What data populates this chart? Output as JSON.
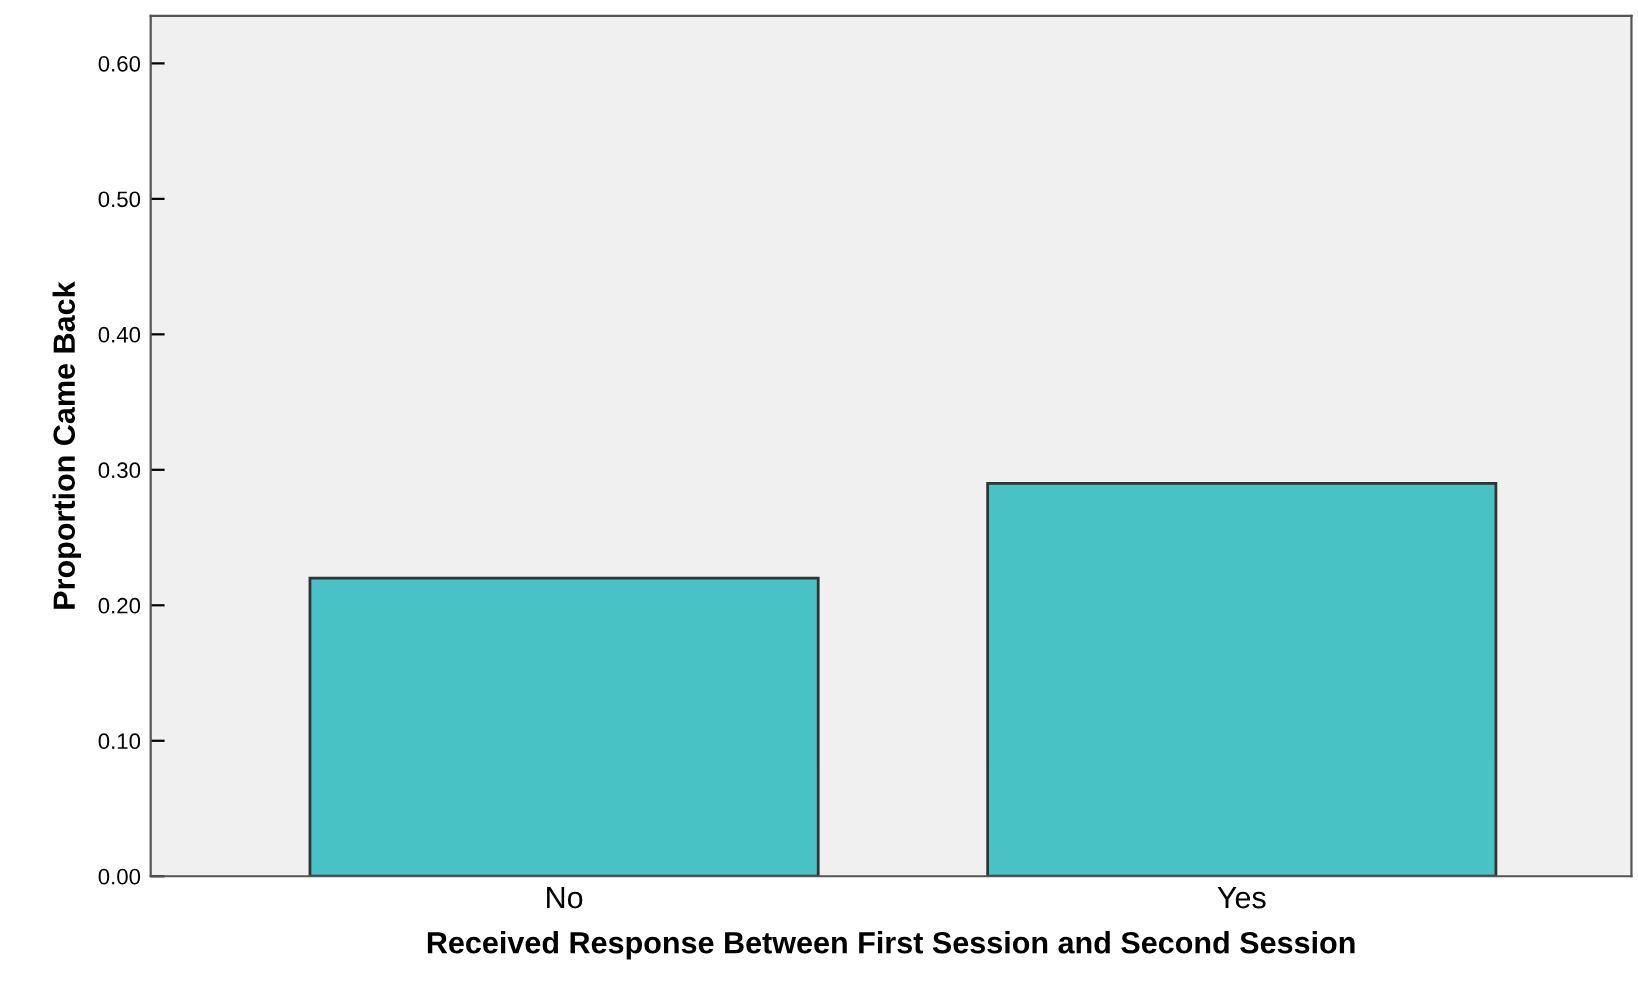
{
  "chart_data": {
    "type": "bar",
    "xlabel": "Received Response Between First Session and Second Session",
    "ylabel": "Proportion Came Back",
    "categories": [
      "No",
      "Yes"
    ],
    "series": [
      {
        "color": "#48c2c5",
        "values": [
          0.22,
          0.29
        ]
      }
    ],
    "ylim": [
      0,
      0.635
    ],
    "yticks": [
      {
        "value": 0,
        "label": "0.00"
      },
      {
        "value": 0.1,
        "label": "0.10"
      },
      {
        "value": 0.2,
        "label": "0.20"
      },
      {
        "value": 0.3,
        "label": "0.30"
      },
      {
        "value": 0.4,
        "label": "0.40"
      },
      {
        "value": 0.5,
        "label": "0.50"
      },
      {
        "value": 0.6,
        "label": "0.60"
      }
    ],
    "grid": false
  }
}
